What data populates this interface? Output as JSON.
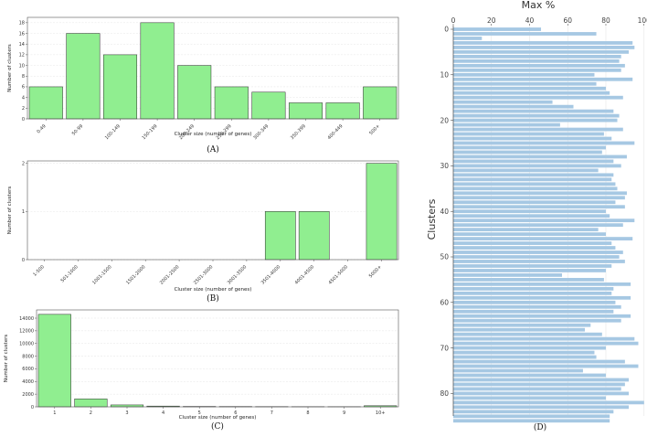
{
  "chart_data": [
    {
      "type": "bar",
      "categories": [
        "0-49",
        "50-99",
        "100-149",
        "150-199",
        "200-249",
        "250-299",
        "300-349",
        "350-399",
        "400-449",
        "500+"
      ],
      "values": [
        6,
        16,
        12,
        18,
        10,
        6,
        5,
        3,
        3,
        6
      ],
      "xlabel": "Cluster size (number of genes)",
      "ylabel": "Number of clusters",
      "yticks": [
        0,
        2,
        4,
        6,
        8,
        10,
        12,
        14,
        16,
        18
      ],
      "ylim": [
        0,
        19
      ],
      "caption": "(A)",
      "color": "#90ee90"
    },
    {
      "type": "bar",
      "categories": [
        "1-500",
        "501-1000",
        "1001-1500",
        "1501-2000",
        "2001-2500",
        "2501-3000",
        "3001-3500",
        "3501-4000",
        "4001-4500",
        "4501-5000",
        "5000+"
      ],
      "values": [
        0,
        0,
        0,
        0,
        0,
        0,
        0,
        1,
        1,
        0,
        2
      ],
      "xlabel": "Cluster size (number of genes)",
      "ylabel": "Number of clusters",
      "yticks": [
        0,
        1,
        2
      ],
      "ylim": [
        0,
        2.05
      ],
      "caption": "(B)",
      "color": "#90ee90"
    },
    {
      "type": "bar",
      "categories": [
        "1",
        "2",
        "3",
        "4",
        "5",
        "6",
        "7",
        "8",
        "9",
        "10+"
      ],
      "values": [
        14600,
        1250,
        300,
        120,
        60,
        50,
        40,
        30,
        25,
        170
      ],
      "xlabel": "Cluster size (number of genes)",
      "ylabel": "Number of clusters",
      "yticks": [
        0,
        2000,
        4000,
        6000,
        8000,
        10000,
        12000,
        14000
      ],
      "ylim": [
        0,
        15300
      ],
      "caption": "(C)",
      "color": "#90ee90"
    },
    {
      "type": "bar",
      "orientation": "horizontal",
      "title": "Max %",
      "ylabel": "Clusters",
      "xticks": [
        0,
        20,
        40,
        60,
        80,
        100
      ],
      "xlim": [
        0,
        103
      ],
      "yticks": [
        0,
        10,
        20,
        30,
        40,
        50,
        60,
        70,
        80
      ],
      "caption": "(D)",
      "color": "#a6c8e3",
      "values": [
        46,
        75,
        15,
        94,
        95,
        92,
        88,
        87,
        90,
        88,
        74,
        94,
        75,
        80,
        82,
        89,
        52,
        63,
        84,
        87,
        86,
        56,
        89,
        79,
        83,
        95,
        80,
        78,
        91,
        84,
        88,
        76,
        84,
        83,
        85,
        86,
        91,
        90,
        85,
        90,
        80,
        82,
        95,
        89,
        76,
        80,
        94,
        83,
        85,
        89,
        87,
        90,
        83,
        80,
        57,
        79,
        93,
        84,
        83,
        93,
        85,
        88,
        84,
        93,
        88,
        72,
        69,
        78,
        95,
        97,
        80,
        74,
        75,
        90,
        97,
        68,
        80,
        92,
        90,
        88,
        92,
        80,
        100,
        92,
        84,
        82,
        82
      ]
    }
  ]
}
